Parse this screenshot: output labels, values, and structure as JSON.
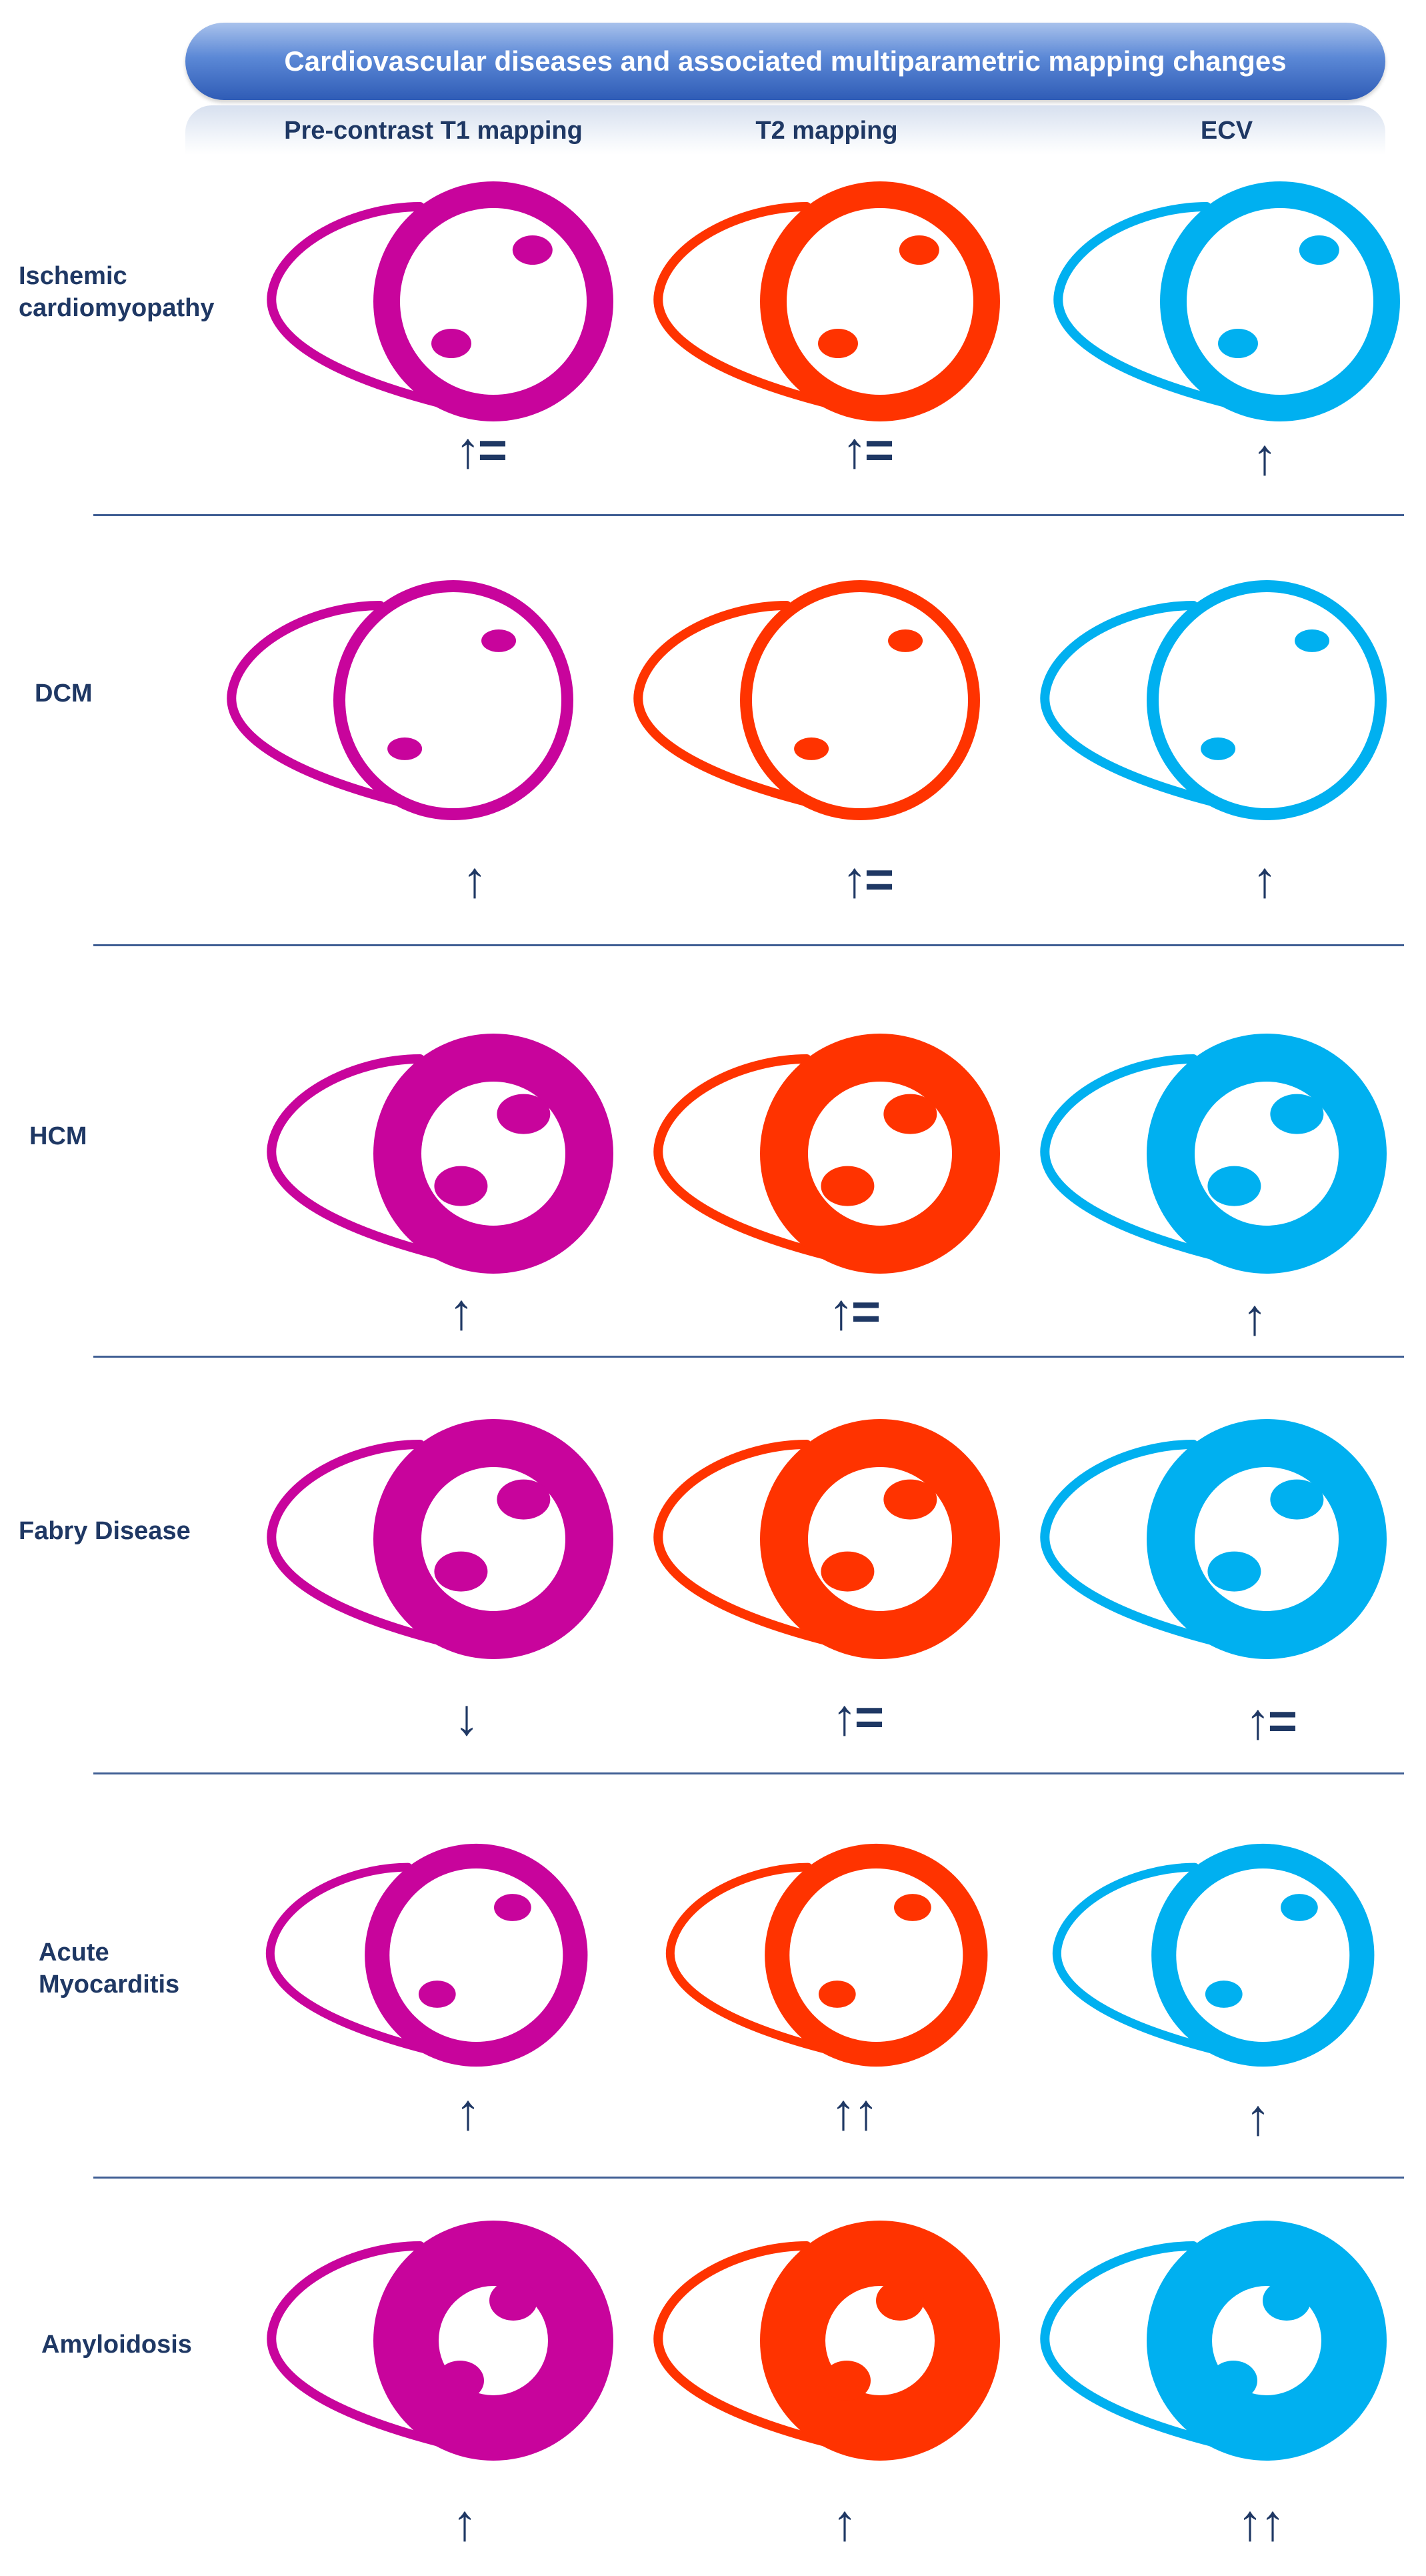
{
  "title": "Cardiovascular diseases and associated multiparametric mapping changes",
  "columns": [
    {
      "label": "Pre-contrast T1 mapping",
      "color": "#c8049c"
    },
    {
      "label": "T2 mapping",
      "color": "#ff3300"
    },
    {
      "label": "ECV",
      "color": "#00b0f0"
    }
  ],
  "rows": [
    {
      "label": "Ischemic\ncardiomyopathy",
      "wall_thickness": "normal",
      "changes": [
        "↑=",
        "↑=",
        "↑"
      ]
    },
    {
      "label": "DCM",
      "wall_thickness": "thin",
      "changes": [
        "↑",
        "↑=",
        "↑"
      ]
    },
    {
      "label": "HCM",
      "wall_thickness": "thick",
      "changes": [
        "↑",
        "↑=",
        "↑"
      ]
    },
    {
      "label": "Fabry Disease",
      "wall_thickness": "thick",
      "changes": [
        "↓",
        "↑=",
        "↑="
      ]
    },
    {
      "label": "Acute\nMyocarditis",
      "wall_thickness": "normal",
      "changes": [
        "↑",
        "↑↑",
        "↑"
      ]
    },
    {
      "label": "Amyloidosis",
      "wall_thickness": "very-thick",
      "changes": [
        "↑",
        "↑",
        "↑↑"
      ]
    }
  ]
}
